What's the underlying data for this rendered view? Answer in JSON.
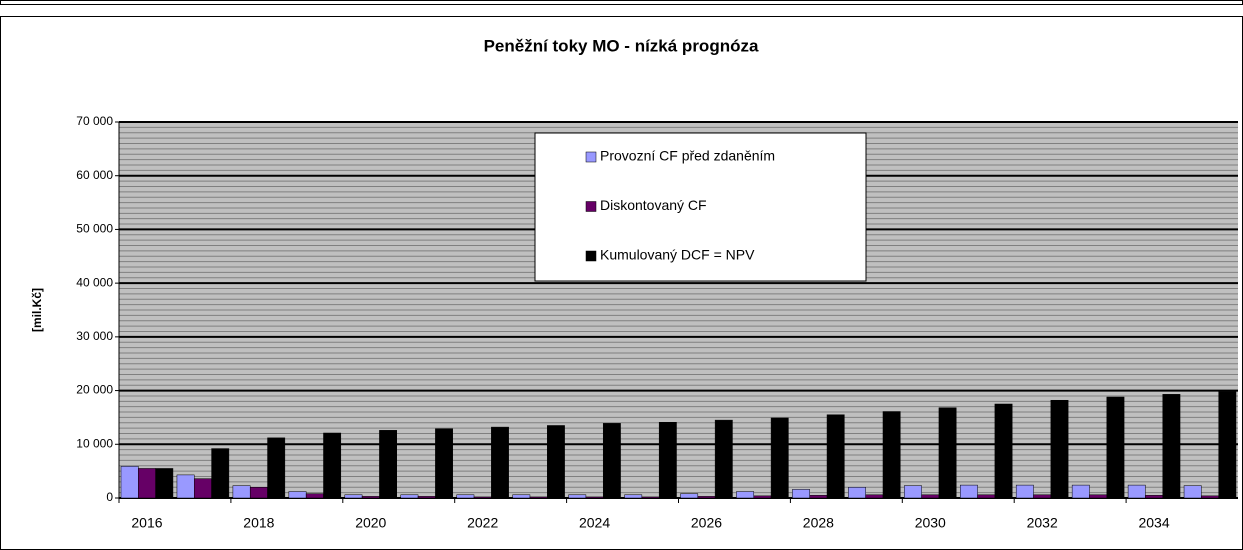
{
  "chart_data": {
    "type": "bar",
    "title": "Peněžní toky MO - nízká prognóza",
    "y_label": "[mil.Kč]",
    "categories": [
      "2016",
      null,
      "2018",
      null,
      "2020",
      null,
      "2022",
      null,
      "2024",
      null,
      "2026",
      null,
      "2028",
      null,
      "2030",
      null,
      "2032",
      null,
      "2034",
      null
    ],
    "series": [
      {
        "name": "Provozní CF před zdaněním",
        "color": "#9999ff",
        "values": [
          5900,
          4300,
          2300,
          1200,
          600,
          600,
          600,
          600,
          600,
          600,
          800,
          1200,
          1600,
          2000,
          2300,
          2400,
          2400,
          2400,
          2400,
          2300
        ]
      },
      {
        "name": "Diskontovaný CF",
        "color": "#660066",
        "values": [
          5500,
          3600,
          2000,
          800,
          300,
          300,
          200,
          200,
          200,
          200,
          300,
          400,
          500,
          600,
          600,
          600,
          600,
          600,
          500,
          400
        ]
      },
      {
        "name": "Kumulovaný DCF = NPV",
        "color": "#000000",
        "values": [
          5500,
          9200,
          11200,
          12100,
          12600,
          12900,
          13200,
          13500,
          13900,
          14100,
          14500,
          14900,
          15500,
          16100,
          16800,
          17500,
          18200,
          18800,
          19300,
          19800
        ]
      }
    ],
    "ylim": [
      0,
      70000
    ],
    "yticks": [
      0,
      {
        "value": 10000,
        "label": "10 000"
      },
      {
        "value": 20000,
        "label": "20 000"
      },
      {
        "value": 30000,
        "label": "30 000"
      },
      {
        "value": 40000,
        "label": "40 000"
      },
      {
        "value": 50000,
        "label": "50 000"
      },
      {
        "value": 60000,
        "label": "60 000"
      },
      {
        "value": 70000,
        "label": "70 000"
      }
    ],
    "grid": true,
    "legend": "top"
  }
}
